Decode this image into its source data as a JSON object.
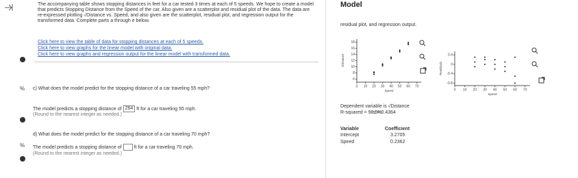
{
  "left": {
    "intro": "The accompanying table shows stopping distances in feet for a car tested 3 times at each of 5 speeds. We hope to create a model that predicts Stopping Distance from the Speed of the car. Also given are a scatterplot and residual plot of the data. The data are re-expressed plotting √Distance vs. Speed, and also given are the scatterplot, residual plot, and regression output for the transformed data. Complete parts a through e below.",
    "links": [
      "Click here to view the table of data for stopping distances at each of 5 speeds.",
      "Click here to view graphs for the linear model with original data.",
      "Click here to view graphs and regression output for the linear model with transformed data."
    ],
    "part_c": {
      "question": "c) What does the model predict for the stopping distance of a car traveling 55 mph?",
      "answer_prefix": "The model predicts a stopping distance of",
      "answer": 264,
      "answer_suffix": "ft for a car traveling 55 mph.",
      "note": "(Round to the nearest integer as needed.)"
    },
    "part_d": {
      "question": "d) What does the model predict for the stopping distance of a car traveling 70 mph?",
      "answer_prefix": "The model predicts a stopping distance of",
      "answer_suffix": "ft for a car traveling 70 mph.",
      "note": "(Round to the nearest integer as needed.)"
    }
  },
  "right": {
    "title": "Model",
    "subtitle": "residual plot, and regression output.",
    "scatterplot": {
      "type": "scatter",
      "x": [
        20,
        20,
        20,
        30,
        30,
        30,
        40,
        40,
        40,
        50,
        50,
        50,
        60,
        60,
        60
      ],
      "y": [
        7.5,
        8.0,
        8.3,
        10.3,
        10.6,
        10.9,
        12.6,
        12.9,
        13.1,
        14.8,
        15.2,
        15.4,
        17.2,
        17.6,
        17.9
      ],
      "xlim": [
        0,
        75
      ],
      "ylim": [
        5,
        19
      ],
      "xticks": [
        0,
        10,
        20,
        30,
        40,
        50,
        60,
        70
      ],
      "yticks": [
        6,
        8,
        10,
        12,
        14,
        16,
        18
      ],
      "xlabel": "Speed",
      "ylabel": "√Distance"
    },
    "residual_plot": {
      "type": "scatter",
      "x": [
        20,
        20,
        20,
        30,
        30,
        30,
        40,
        40,
        40,
        50,
        50,
        50,
        60,
        60,
        60
      ],
      "y": [
        0.3,
        0.1,
        -0.1,
        0.3,
        0.2,
        0.0,
        0.2,
        0.0,
        -0.2,
        0.1,
        -0.1,
        -0.3,
        0.3,
        -0.5,
        -0.8
      ],
      "xlim": [
        0,
        75
      ],
      "ylim": [
        -0.9,
        0.55
      ],
      "xticks": [
        0,
        10,
        20,
        30,
        40,
        50,
        60,
        70
      ],
      "yticks": [
        {
          "value": 0.4,
          "label": "0.4"
        },
        0,
        {
          "value": -0.4,
          "label": "-0.4"
        },
        {
          "value": -0.8,
          "label": "-0.8"
        }
      ],
      "xlabel": "Speed",
      "ylabel": "Residuals"
    },
    "regression": {
      "dependent": "Dependent variable is √Distance",
      "r_squared": "R-squared = 98.5%",
      "s": "s = 0.4364",
      "header": [
        "Variable",
        "Coefficient"
      ],
      "rows": [
        [
          "Intercept",
          "3.2705"
        ],
        [
          "Speed",
          "0.2362"
        ]
      ]
    }
  }
}
